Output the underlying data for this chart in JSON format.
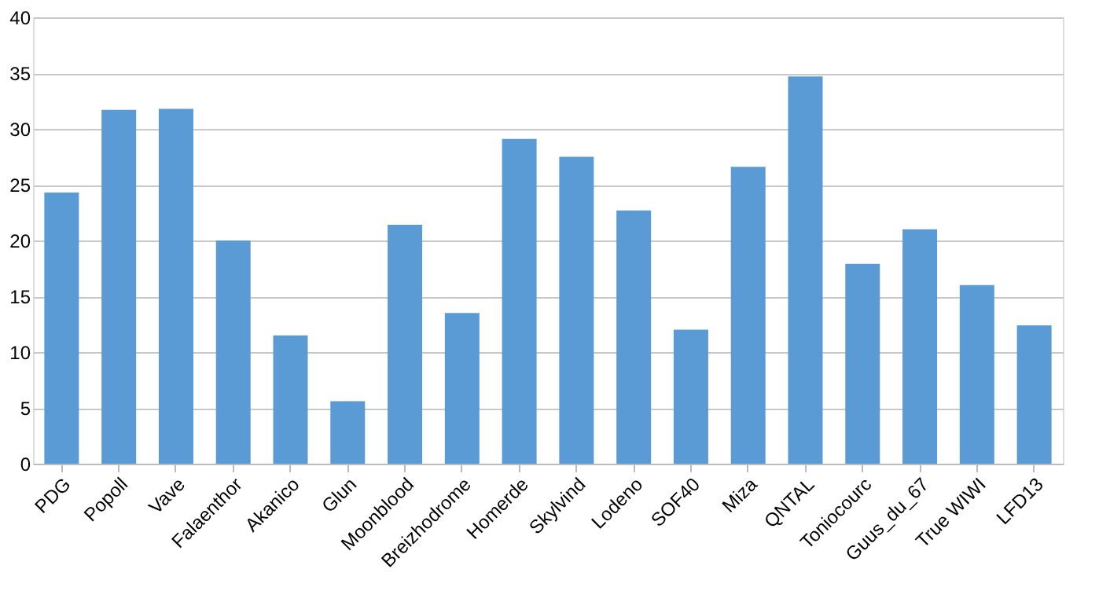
{
  "chart_data": {
    "type": "bar",
    "categories": [
      "PDG",
      "Popoll",
      "Vave",
      "Falaenthor",
      "Akanico",
      "Glun",
      "Moonblood",
      "Breizhodrome",
      "Homerde",
      "Skylvind",
      "Lodeno",
      "SOF40",
      "Miza",
      "QNTAL",
      "Toniocourc",
      "Guus_du_67",
      "True WIWI",
      "LFD13"
    ],
    "values": [
      24.3,
      31.7,
      31.8,
      20,
      11.5,
      5.6,
      21.4,
      13.5,
      29.1,
      27.5,
      22.7,
      12,
      26.6,
      34.7,
      17.9,
      21,
      16,
      12.4
    ],
    "color": "#5b9bd5",
    "ylim": [
      0,
      40
    ],
    "yticks": [
      0,
      5,
      10,
      15,
      20,
      25,
      30,
      35,
      40
    ],
    "grid": "y"
  }
}
